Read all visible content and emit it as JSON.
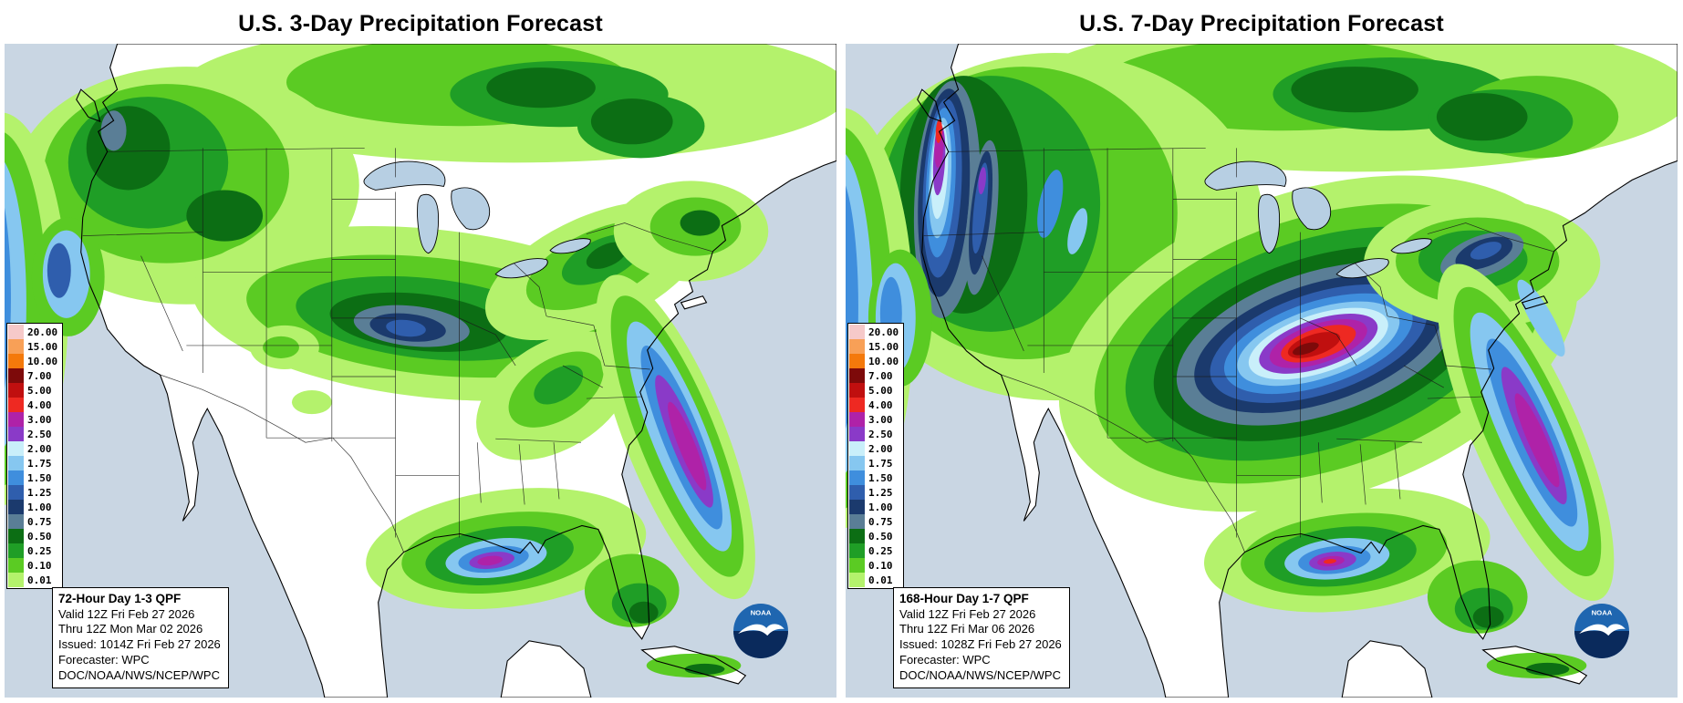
{
  "left_panel": {
    "title": "U.S. 3-Day Precipitation Forecast",
    "info_box": {
      "heading": "72-Hour Day 1-3 QPF",
      "lines": [
        "Valid 12Z Fri Feb 27 2026",
        "Thru 12Z Mon Mar 02 2026",
        "Issued: 1014Z Fri Feb 27 2026",
        "Forecaster: WPC",
        "DOC/NOAA/NWS/NCEP/WPC"
      ]
    }
  },
  "right_panel": {
    "title": "U.S. 7-Day Precipitation Forecast",
    "info_box": {
      "heading": "168-Hour Day 1-7 QPF",
      "lines": [
        "Valid 12Z Fri Feb 27 2026",
        "Thru 12Z Fri Mar 06 2026",
        "Issued: 1028Z Fri Feb 27 2026",
        "Forecaster: WPC",
        "DOC/NOAA/NWS/NCEP/WPC"
      ]
    }
  },
  "legend": {
    "entries": [
      {
        "value": "20.00",
        "color": "#F6C9C9"
      },
      {
        "value": "15.00",
        "color": "#F8A057"
      },
      {
        "value": "10.00",
        "color": "#F4790B"
      },
      {
        "value": "7.00",
        "color": "#7D0A0A"
      },
      {
        "value": "5.00",
        "color": "#C00F0F"
      },
      {
        "value": "4.00",
        "color": "#EE2922"
      },
      {
        "value": "3.00",
        "color": "#AF22A8"
      },
      {
        "value": "2.50",
        "color": "#8A3AC8"
      },
      {
        "value": "2.00",
        "color": "#C9EFFA"
      },
      {
        "value": "1.75",
        "color": "#86C7F0"
      },
      {
        "value": "1.50",
        "color": "#3F8EDD"
      },
      {
        "value": "1.25",
        "color": "#2F5EAD"
      },
      {
        "value": "1.00",
        "color": "#1B3A6D"
      },
      {
        "value": "0.75",
        "color": "#5A7E96"
      },
      {
        "value": "0.50",
        "color": "#0C6E14"
      },
      {
        "value": "0.25",
        "color": "#1F9E26"
      },
      {
        "value": "0.10",
        "color": "#5BCB23"
      },
      {
        "value": "0.01",
        "color": "#B4F26C"
      }
    ]
  },
  "noaa_logo": {
    "label": "NOAA"
  },
  "colors": {
    "ocean": "#C9D6E3",
    "lakes": "#B7CFE3",
    "land": "#FFFFFF",
    "border": "#000000"
  }
}
